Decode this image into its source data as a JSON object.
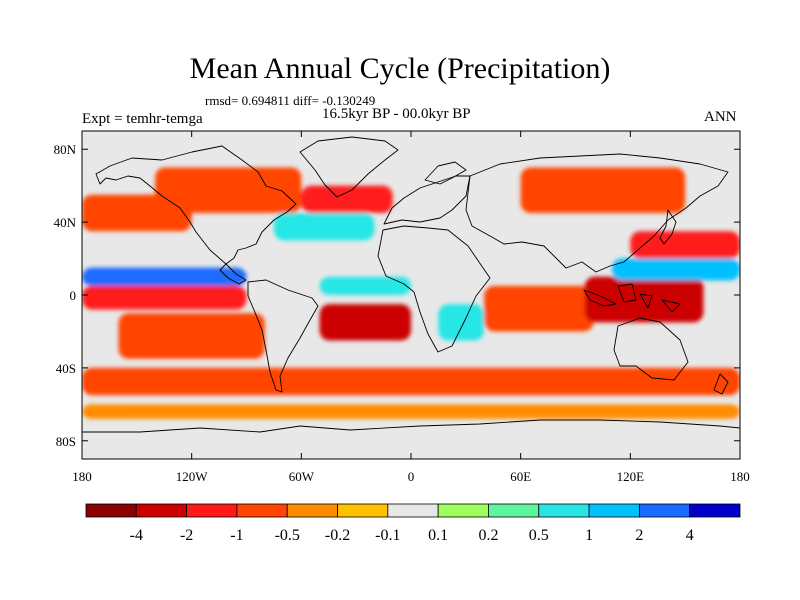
{
  "title": "Mean Annual Cycle (Precipitation)",
  "stats_line": "rmsd= 0.694811 diff= -0.130249",
  "period_line": "16.5kyr BP - 00.0kyr BP",
  "experiment_label": "Expt = temhr-temga",
  "season_label": "ANN",
  "chart_data": {
    "type": "heatmap",
    "projection": "cylindrical-equidistant",
    "x_range": [
      -180,
      180
    ],
    "y_range": [
      -90,
      90
    ],
    "x_ticks": [
      {
        "value": -180,
        "label": "180"
      },
      {
        "value": -120,
        "label": "120W"
      },
      {
        "value": -60,
        "label": "60W"
      },
      {
        "value": 0,
        "label": "0"
      },
      {
        "value": 60,
        "label": "60E"
      },
      {
        "value": 120,
        "label": "120E"
      },
      {
        "value": 180,
        "label": "180"
      }
    ],
    "y_ticks": [
      {
        "value": 80,
        "label": "80N"
      },
      {
        "value": 40,
        "label": "40N"
      },
      {
        "value": 0,
        "label": "0"
      },
      {
        "value": -40,
        "label": "40S"
      },
      {
        "value": -80,
        "label": "80S"
      }
    ],
    "colorbar": {
      "colors": [
        "#8b0000",
        "#cc0000",
        "#ff1a1a",
        "#ff4500",
        "#ff8c00",
        "#ffc000",
        "#e8e8e8",
        "#9cff5c",
        "#5cf5a0",
        "#28e6e6",
        "#00c0ff",
        "#1a6cff",
        "#0000c8"
      ],
      "levels": [
        "-4",
        "-2",
        "-1",
        "-0.5",
        "-0.2",
        "-0.1",
        "0.1",
        "0.2",
        "0.5",
        "1",
        "2",
        "4"
      ]
    },
    "anomaly_regions": [
      {
        "name": "tropical-pacific-wet-band",
        "lon": [
          -180,
          -90
        ],
        "lat": [
          5,
          15
        ],
        "value": 3
      },
      {
        "name": "tropical-pacific-dry-band",
        "lon": [
          -180,
          -90
        ],
        "lat": [
          -8,
          5
        ],
        "value": -1
      },
      {
        "name": "south-pacific-dry",
        "lon": [
          -160,
          -80
        ],
        "lat": [
          -35,
          -10
        ],
        "value": -0.8
      },
      {
        "name": "north-pacific-dry",
        "lon": [
          -180,
          -120
        ],
        "lat": [
          35,
          55
        ],
        "value": -0.5
      },
      {
        "name": "north-america-dry",
        "lon": [
          -140,
          -60
        ],
        "lat": [
          45,
          70
        ],
        "value": -0.5
      },
      {
        "name": "north-atlantic-wet",
        "lon": [
          -75,
          -20
        ],
        "lat": [
          30,
          45
        ],
        "value": 0.7
      },
      {
        "name": "north-atlantic-dry",
        "lon": [
          -60,
          -10
        ],
        "lat": [
          45,
          60
        ],
        "value": -1
      },
      {
        "name": "equatorial-atlantic-wet",
        "lon": [
          -50,
          0
        ],
        "lat": [
          0,
          10
        ],
        "value": 1
      },
      {
        "name": "south-atlantic-dry",
        "lon": [
          -50,
          0
        ],
        "lat": [
          -25,
          -5
        ],
        "value": -2
      },
      {
        "name": "southern-africa-wet",
        "lon": [
          15,
          40
        ],
        "lat": [
          -25,
          -5
        ],
        "value": 0.6
      },
      {
        "name": "indian-ocean-dry",
        "lon": [
          40,
          100
        ],
        "lat": [
          -20,
          5
        ],
        "value": -0.8
      },
      {
        "name": "maritime-continent-dry",
        "lon": [
          95,
          160
        ],
        "lat": [
          -15,
          10
        ],
        "value": -2
      },
      {
        "name": "west-pacific-wet",
        "lon": [
          110,
          180
        ],
        "lat": [
          8,
          20
        ],
        "value": 2
      },
      {
        "name": "northwest-pacific-dry",
        "lon": [
          120,
          180
        ],
        "lat": [
          20,
          35
        ],
        "value": -1
      },
      {
        "name": "siberia-dry",
        "lon": [
          60,
          150
        ],
        "lat": [
          45,
          70
        ],
        "value": -0.5
      },
      {
        "name": "southern-ocean-dry",
        "lon": [
          -180,
          180
        ],
        "lat": [
          -55,
          -40
        ],
        "value": -0.5
      },
      {
        "name": "antarctic-margin-dry",
        "lon": [
          -180,
          180
        ],
        "lat": [
          -68,
          -60
        ],
        "value": -0.3
      }
    ]
  }
}
